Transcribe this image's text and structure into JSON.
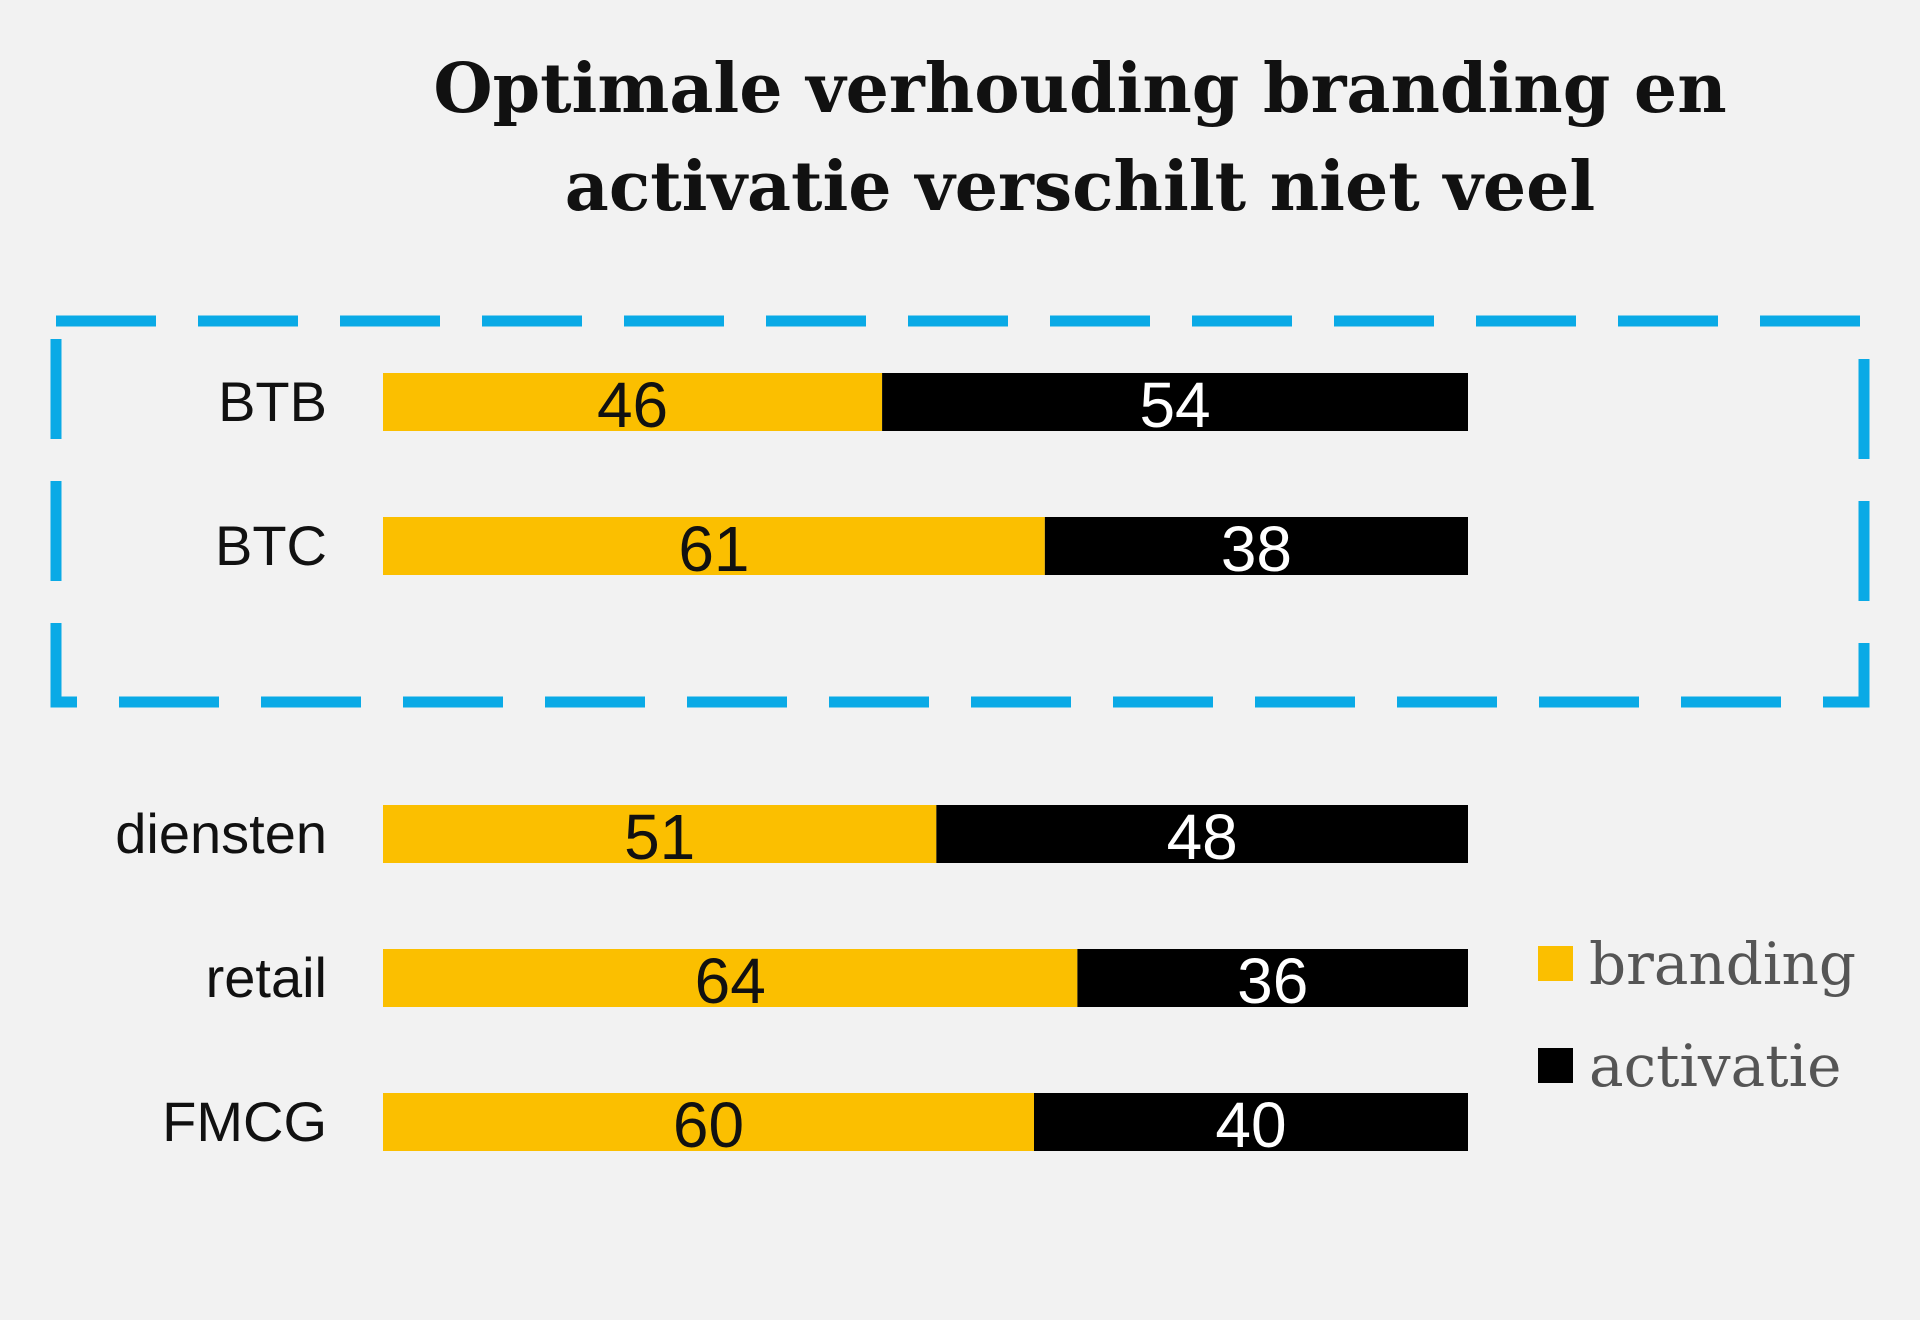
{
  "chart_data": {
    "type": "bar",
    "orientation": "horizontal",
    "stacked": true,
    "title": "Optimale verhouding branding en activatie verschilt niet veel",
    "title_lines": [
      "Optimale verhouding branding en",
      "activatie verschilt niet veel"
    ],
    "categories": [
      "BTB",
      "BTC",
      "diensten",
      "retail",
      "FMCG"
    ],
    "series": [
      {
        "name": "branding",
        "values": [
          46,
          61,
          51,
          64,
          60
        ],
        "color": "#fbbf00"
      },
      {
        "name": "activatie",
        "values": [
          54,
          38,
          48,
          36,
          40
        ],
        "color": "#000000"
      }
    ],
    "highlight": {
      "categories": [
        "BTB",
        "BTC"
      ],
      "style": "dashed-box",
      "color": "#0aaae6"
    },
    "legend_position": "right",
    "grid": false,
    "xlim": [
      0,
      100
    ]
  }
}
